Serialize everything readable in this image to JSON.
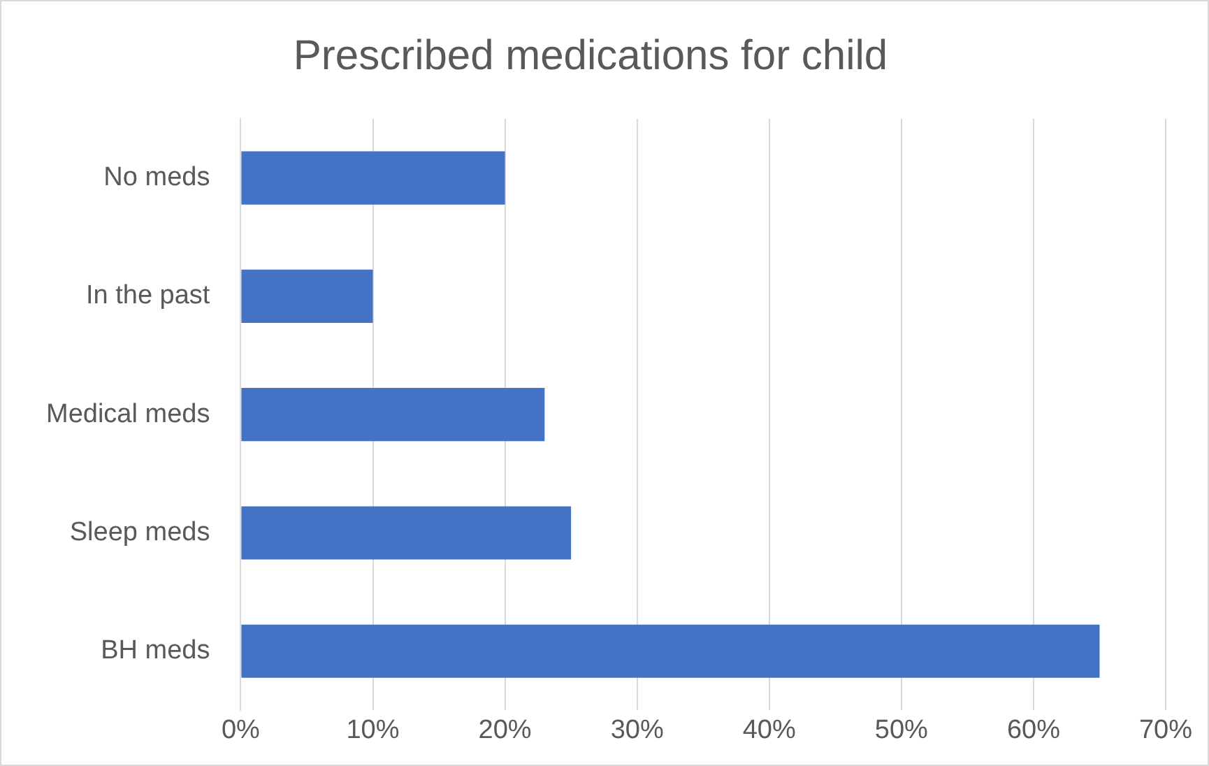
{
  "chart_data": {
    "type": "bar",
    "orientation": "horizontal",
    "title": "Prescribed medications for child",
    "categories": [
      "No meds",
      "In the past",
      "Medical meds",
      "Sleep meds",
      "BH meds"
    ],
    "values": [
      20,
      10,
      23,
      25,
      65
    ],
    "color": "#4472c4",
    "xlim": [
      0,
      70
    ],
    "xticks": [
      {
        "value": 0,
        "label": "0%"
      },
      {
        "value": 10,
        "label": "10%"
      },
      {
        "value": 20,
        "label": "20%"
      },
      {
        "value": 30,
        "label": "30%"
      },
      {
        "value": 40,
        "label": "40%"
      },
      {
        "value": 50,
        "label": "50%"
      },
      {
        "value": 60,
        "label": "60%"
      },
      {
        "value": 70,
        "label": "70%"
      }
    ],
    "grid": "x",
    "legend": false
  }
}
